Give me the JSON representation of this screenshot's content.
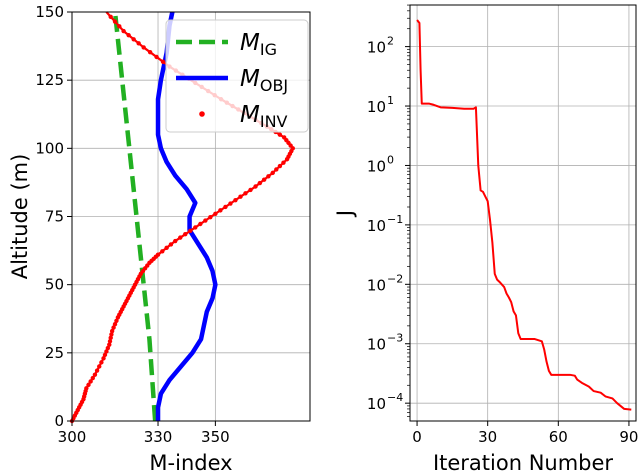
{
  "chart_data": [
    {
      "type": "line",
      "xlabel": "M-index",
      "ylabel": "Altitude (m)",
      "xlim": [
        300,
        383
      ],
      "ylim": [
        0,
        150
      ],
      "xticks": [
        "300",
        "330",
        "350"
      ],
      "xtick_values": [
        300,
        330,
        350
      ],
      "yticks": [
        "0",
        "25",
        "50",
        "75",
        "100",
        "125",
        "150"
      ],
      "ytick_values": [
        0,
        25,
        50,
        75,
        100,
        125,
        150
      ],
      "grid": true,
      "legend_position": "top-right",
      "series": [
        {
          "name": "M",
          "name_sub": "IG",
          "color": "#22b022",
          "style": "dashed",
          "x": [
            329,
            327,
            324,
            321,
            318,
            315
          ],
          "y": [
            0,
            30,
            60,
            90,
            120,
            150
          ]
        },
        {
          "name": "M",
          "name_sub": "OBJ",
          "color": "#0000ff",
          "style": "solid",
          "x": [
            330,
            330,
            331,
            334,
            338,
            342,
            345,
            346,
            347,
            349,
            350,
            349,
            347,
            344,
            341,
            341,
            343,
            340,
            336,
            333,
            331,
            330,
            330,
            330,
            331,
            333,
            334,
            335
          ],
          "y": [
            0,
            5,
            10,
            15,
            20,
            25,
            30,
            35,
            40,
            45,
            50,
            55,
            60,
            65,
            70,
            75,
            80,
            85,
            90,
            95,
            100,
            105,
            110,
            118,
            125,
            135,
            145,
            150
          ]
        },
        {
          "name": "M",
          "name_sub": "INV",
          "color": "#ff0000",
          "style": "dotted-line",
          "x": [
            300,
            302,
            304,
            305,
            308,
            311,
            313,
            314,
            316,
            318,
            320,
            322,
            324,
            327,
            330,
            336,
            343,
            350,
            357,
            364,
            370,
            375,
            377,
            374,
            368,
            360,
            352,
            343,
            334,
            325,
            318,
            312
          ],
          "y": [
            0,
            4,
            8,
            12,
            17,
            23,
            28,
            33,
            38,
            42,
            46,
            50,
            54,
            58,
            61,
            66,
            71,
            76,
            81,
            86,
            91,
            96,
            100,
            104,
            108,
            113,
            118,
            124,
            130,
            137,
            143,
            150
          ]
        }
      ]
    },
    {
      "type": "line",
      "xlabel": "Iteration Number",
      "ylabel": "J",
      "yscale": "log",
      "xlim": [
        -3,
        93
      ],
      "ylim_exp": [
        -4.3,
        2.7
      ],
      "xticks": [
        "0",
        "30",
        "60",
        "90"
      ],
      "xtick_values": [
        0,
        30,
        60,
        90
      ],
      "yticks_exp": [
        -4,
        -3,
        -2,
        -1,
        0,
        1,
        2
      ],
      "ytick_labels": [
        "10",
        "10",
        "10",
        "10",
        "10",
        "10",
        "10"
      ],
      "ytick_exponents": [
        "−4",
        "−3",
        "−2",
        "−1",
        "0",
        "1",
        "2"
      ],
      "grid": true,
      "series": [
        {
          "color": "#ff0000",
          "x": [
            0,
            1,
            1.5,
            2,
            5,
            7,
            10,
            15,
            20,
            24,
            25,
            26,
            27,
            28,
            29,
            30,
            31,
            32,
            33,
            34,
            35,
            37,
            38,
            39,
            40,
            41,
            42,
            43,
            44,
            45,
            46,
            47,
            50,
            53,
            54,
            55,
            56,
            57,
            60,
            65,
            67,
            68,
            70,
            73,
            75,
            78,
            80,
            83,
            85,
            88,
            91
          ],
          "y": [
            280,
            250,
            40,
            11,
            11,
            10.5,
            9.5,
            9.3,
            9,
            9,
            9.5,
            1.0,
            0.38,
            0.36,
            0.3,
            0.25,
            0.12,
            0.05,
            0.015,
            0.012,
            0.011,
            0.009,
            0.007,
            0.006,
            0.005,
            0.0035,
            0.003,
            0.0015,
            0.0012,
            0.0012,
            0.0012,
            0.0012,
            0.0012,
            0.0011,
            0.0008,
            0.0005,
            0.00035,
            0.0003,
            0.0003,
            0.0003,
            0.00029,
            0.00025,
            0.00022,
            0.00019,
            0.00016,
            0.00015,
            0.00013,
            0.00012,
            0.0001,
            8e-05,
            7.8e-05
          ]
        }
      ]
    }
  ]
}
